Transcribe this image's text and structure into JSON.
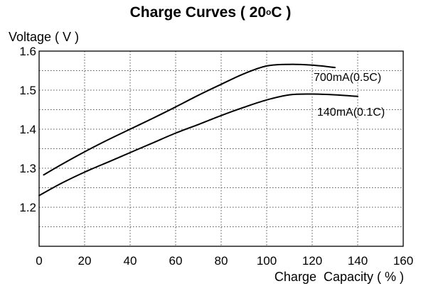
{
  "chart_data": {
    "type": "line",
    "title_main": "Charge Curves ( 20",
    "title_sup": "o",
    "title_end": "C )",
    "ylabel": "Voltage ( V )",
    "xlabel": "Charge  Capacity ( % )",
    "xlim": [
      0,
      160
    ],
    "ylim": [
      1.1,
      1.6
    ],
    "x_ticks": [
      0,
      20,
      40,
      60,
      80,
      100,
      120,
      140,
      160
    ],
    "x_tick_labels": [
      "0",
      "20",
      "40",
      "60",
      "80",
      "100",
      "120",
      "140",
      "160"
    ],
    "y_ticks": [
      1.2,
      1.3,
      1.4,
      1.5,
      1.6
    ],
    "y_tick_labels": [
      "1.2",
      "1.3",
      "1.4",
      "1.5",
      "1.6"
    ],
    "grid": true,
    "grid_style": "dotted",
    "series": [
      {
        "name": "700mA(0.5C)",
        "color": "#000000",
        "points": [
          [
            2,
            1.283
          ],
          [
            10,
            1.31
          ],
          [
            20,
            1.342
          ],
          [
            30,
            1.372
          ],
          [
            40,
            1.4
          ],
          [
            50,
            1.428
          ],
          [
            60,
            1.457
          ],
          [
            70,
            1.487
          ],
          [
            80,
            1.515
          ],
          [
            90,
            1.542
          ],
          [
            100,
            1.562
          ],
          [
            110,
            1.566
          ],
          [
            120,
            1.564
          ],
          [
            130,
            1.558
          ]
        ]
      },
      {
        "name": "140mA(0.1C)",
        "color": "#000000",
        "points": [
          [
            0,
            1.23
          ],
          [
            10,
            1.262
          ],
          [
            20,
            1.29
          ],
          [
            30,
            1.315
          ],
          [
            40,
            1.34
          ],
          [
            50,
            1.365
          ],
          [
            60,
            1.39
          ],
          [
            70,
            1.412
          ],
          [
            80,
            1.435
          ],
          [
            90,
            1.456
          ],
          [
            100,
            1.475
          ],
          [
            110,
            1.488
          ],
          [
            120,
            1.49
          ],
          [
            130,
            1.488
          ],
          [
            140,
            1.484
          ]
        ]
      }
    ]
  }
}
